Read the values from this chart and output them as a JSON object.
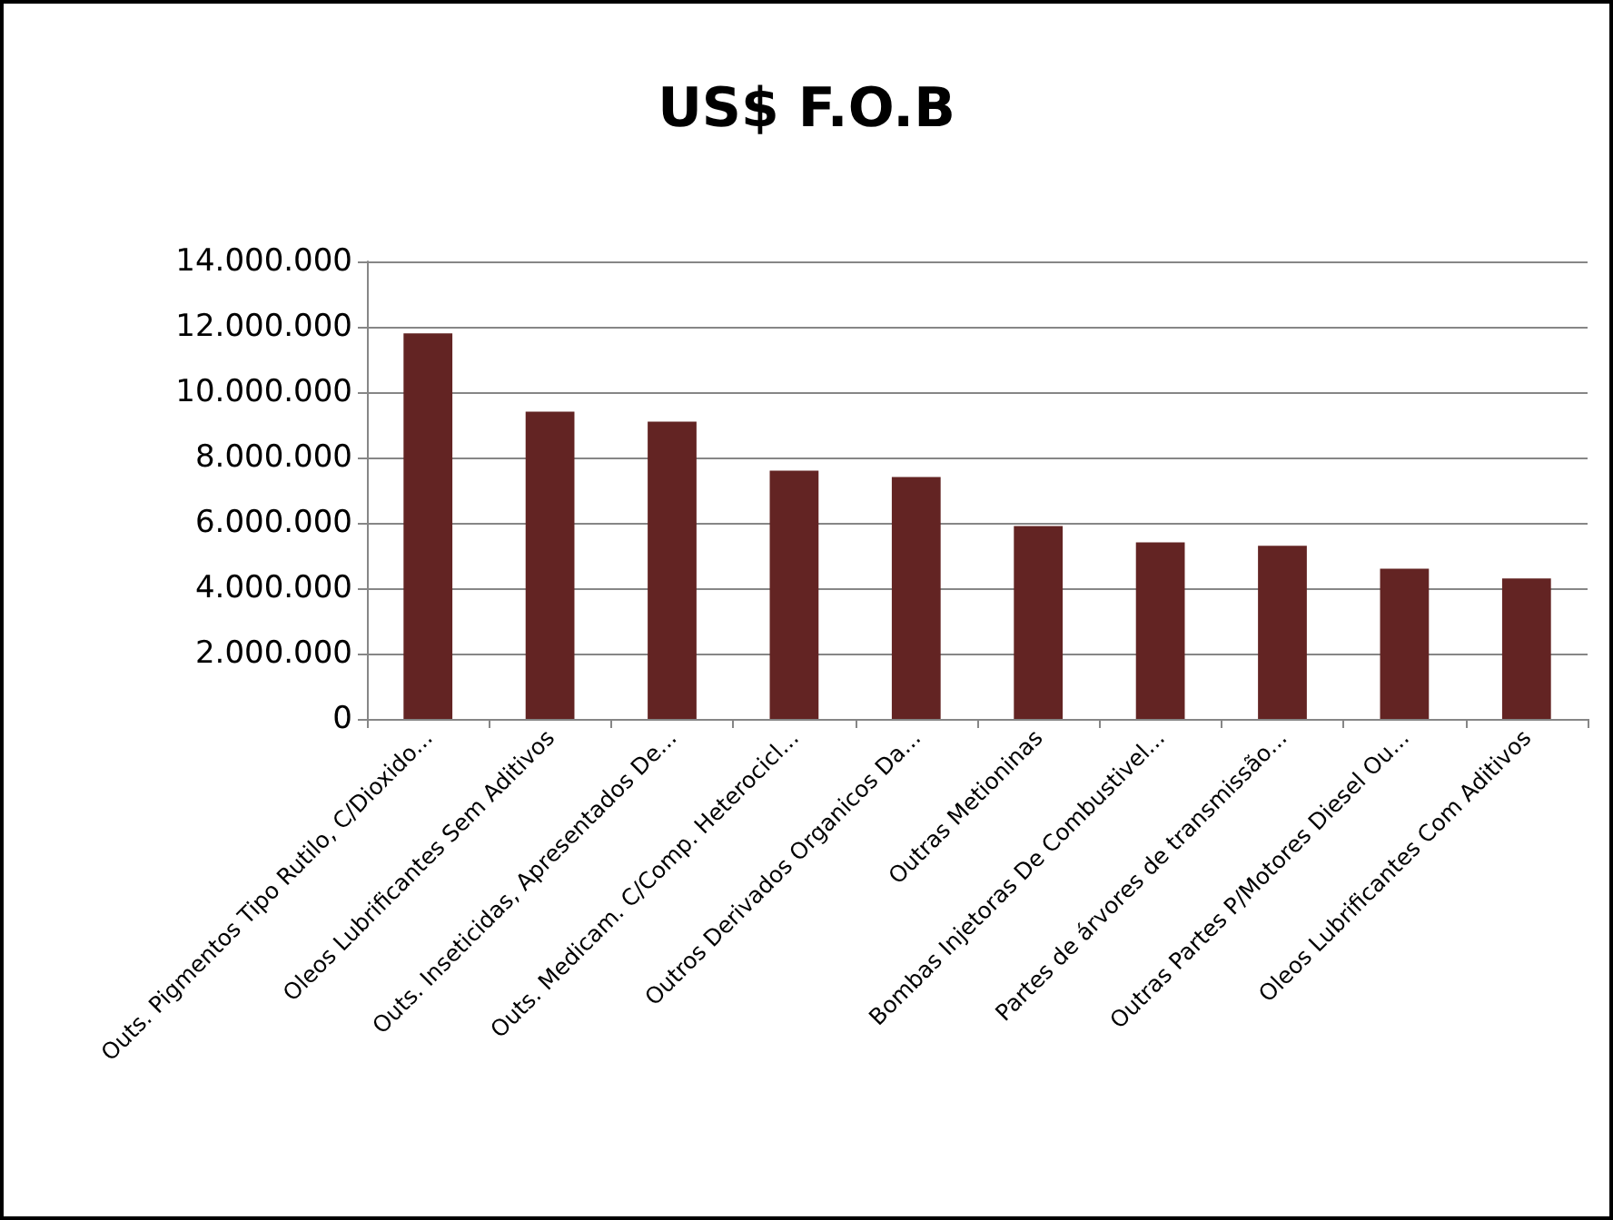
{
  "chart_data": {
    "type": "bar",
    "title": "US$ F.O.B",
    "categories": [
      "Outs. Pigmentos Tipo Rutilo, C/Dioxido...",
      "Oleos Lubrificantes Sem Aditivos",
      "Outs. Inseticidas, Apresentados De...",
      "Outs. Medicam. C/Comp. Heterocicl...",
      "Outros Derivados Organicos Da...",
      "Outras Metioninas",
      "Bombas Injetoras De Combustivel...",
      "Partes de árvores de transmissão...",
      "Outras Partes P/Motores Diesel Ou...",
      "Oleos Lubrificantes Com Aditivos"
    ],
    "values": [
      11800000,
      9400000,
      9100000,
      7600000,
      7400000,
      5900000,
      5400000,
      5300000,
      4600000,
      4300000
    ],
    "color": "#632423",
    "ylim": [
      0,
      14000000
    ],
    "yticks": [
      {
        "value": 0,
        "label": "0"
      },
      {
        "value": 2000000,
        "label": "2.000.000"
      },
      {
        "value": 4000000,
        "label": "4.000.000"
      },
      {
        "value": 6000000,
        "label": "6.000.000"
      },
      {
        "value": 8000000,
        "label": "8.000.000"
      },
      {
        "value": 10000000,
        "label": "10.000.000"
      },
      {
        "value": 12000000,
        "label": "12.000.000"
      },
      {
        "value": 14000000,
        "label": "14.000.000"
      }
    ],
    "grid": "y"
  }
}
